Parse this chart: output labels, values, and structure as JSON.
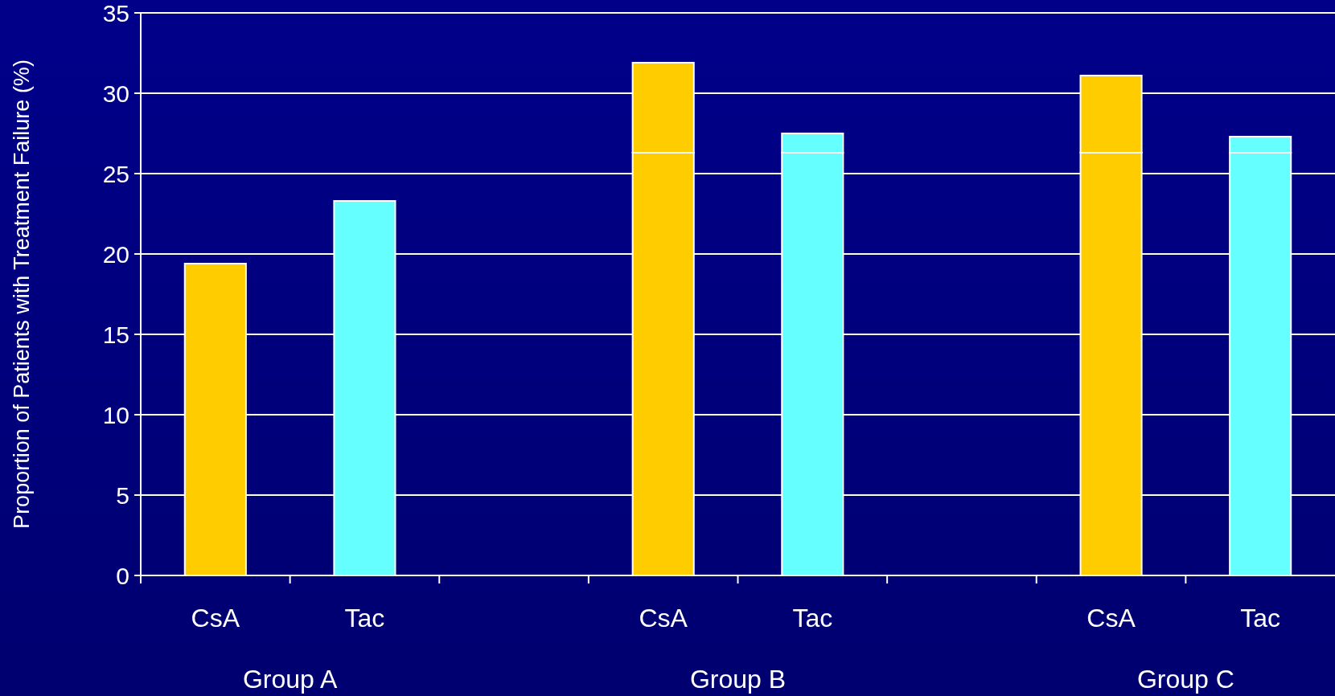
{
  "chart_data": {
    "type": "bar",
    "ylabel": "Proportion of Patients with Treatment Failure (%)",
    "categories": [
      "CsA",
      "Tac",
      null,
      "CsA",
      "Tac",
      null,
      "CsA",
      "Tac"
    ],
    "stacked": true,
    "series": [
      {
        "colors": [
          "#ffcc00",
          "#66ffff",
          null,
          "#ffcc00",
          "#66ffff",
          null,
          "#ffcc00",
          "#66ffff"
        ],
        "values": [
          19.4,
          23.3,
          null,
          26.3,
          26.3,
          null,
          26.3,
          26.3
        ]
      },
      {
        "colors": [
          null,
          null,
          null,
          "#ffcc00",
          "#66ffff",
          null,
          "#ffcc00",
          "#66ffff"
        ],
        "values": [
          null,
          null,
          null,
          5.6,
          1.2,
          null,
          4.8,
          1.0
        ]
      }
    ],
    "annotations": [
      "Group A",
      "Group B",
      "Group C"
    ],
    "ylim": [
      0,
      35
    ],
    "yticks": [
      0,
      5,
      10,
      15,
      20,
      25,
      30,
      35
    ],
    "grid": "y"
  }
}
